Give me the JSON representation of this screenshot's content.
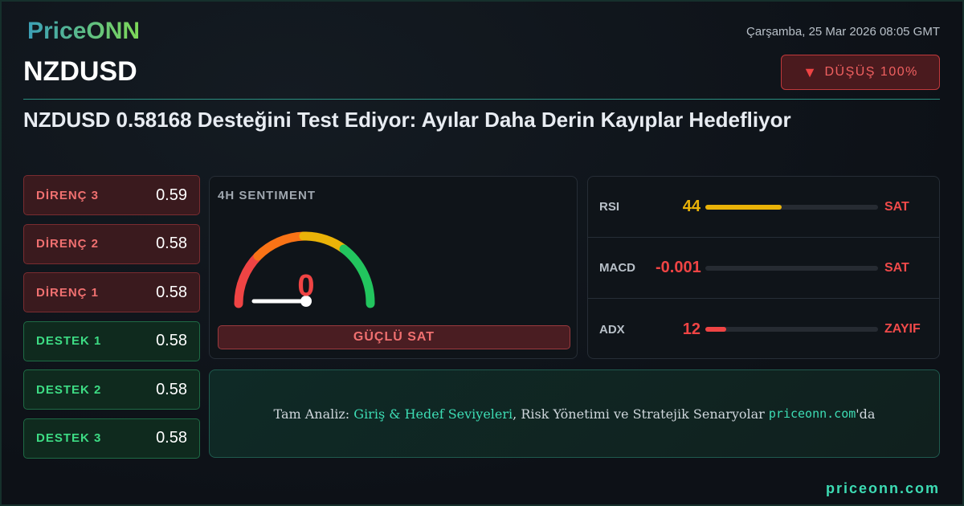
{
  "brand": {
    "logo": "PriceONN",
    "footer": "priceonn.com"
  },
  "date": "Çarşamba, 25 Mar 2026 08:05 GMT",
  "symbol": "NZDUSD",
  "badge": {
    "icon": "triangle-down-icon",
    "label": "DÜŞÜŞ 100%"
  },
  "headline": "NZDUSD 0.58168 Desteğini Test Ediyor: Ayılar Daha Derin Kayıplar Hedefliyor",
  "levels": [
    {
      "label": "DİRENÇ 3",
      "value": "0.59",
      "type": "resistance"
    },
    {
      "label": "DİRENÇ 2",
      "value": "0.58",
      "type": "resistance"
    },
    {
      "label": "DİRENÇ 1",
      "value": "0.58",
      "type": "resistance"
    },
    {
      "label": "DESTEK 1",
      "value": "0.58",
      "type": "support"
    },
    {
      "label": "DESTEK 2",
      "value": "0.58",
      "type": "support"
    },
    {
      "label": "DESTEK 3",
      "value": "0.58",
      "type": "support"
    }
  ],
  "sentiment": {
    "title": "4H SENTIMENT",
    "value": "0",
    "score": 0,
    "label": "GÜÇLÜ SAT"
  },
  "indicators": [
    {
      "name": "RSI",
      "value": "44",
      "fill": 0.44,
      "signal": "SAT",
      "color": "#eab308"
    },
    {
      "name": "MACD",
      "value": "-0.001",
      "fill": 0,
      "signal": "SAT",
      "color": "#ef4444"
    },
    {
      "name": "ADX",
      "value": "12",
      "fill": 0.12,
      "signal": "ZAYIF",
      "color": "#ef4444"
    }
  ],
  "cta": {
    "prefix": "Tam Analiz: ",
    "highlight": "Giriş & Hedef Seviyeleri",
    "middle": ", Risk Yönetimi ve Stratejik Senaryolar ",
    "site": "priceonn.com",
    "suffix": "'da"
  },
  "colors": {
    "accent": "#3ddcb4",
    "bearish": "#ef4444",
    "bullish": "#3ddc84"
  }
}
